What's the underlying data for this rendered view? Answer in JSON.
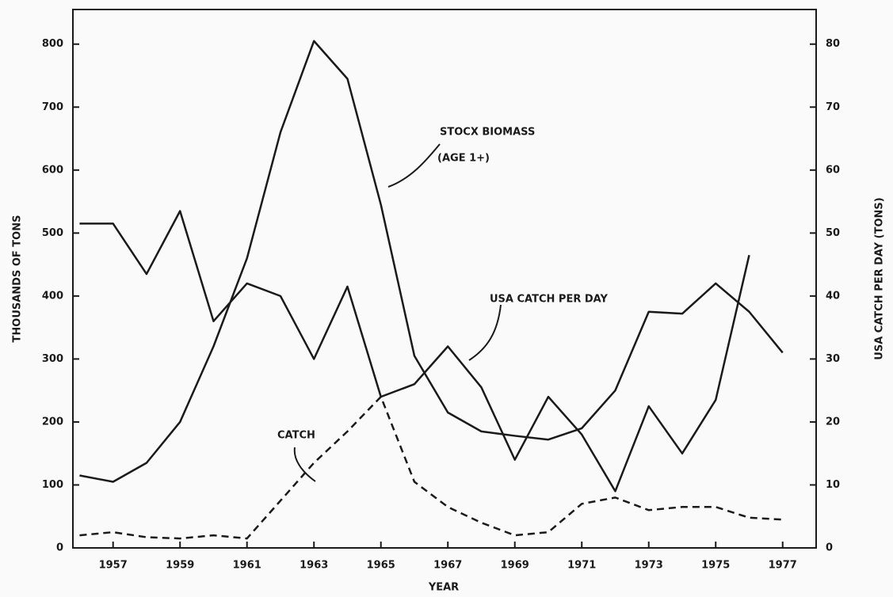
{
  "chart_data": {
    "type": "line",
    "xlabel": "YEAR",
    "ylabel": "THOUSANDS OF TONS",
    "y2label": "USA CATCH PER DAY (TONS)",
    "x": [
      1956,
      1957,
      1958,
      1959,
      1960,
      1961,
      1962,
      1963,
      1964,
      1965,
      1966,
      1967,
      1968,
      1969,
      1970,
      1971,
      1972,
      1973,
      1974,
      1975,
      1976,
      1977
    ],
    "xlim": [
      1955.8,
      1978
    ],
    "xticks": [
      1957,
      1959,
      1961,
      1963,
      1965,
      1967,
      1969,
      1971,
      1973,
      1975,
      1977
    ],
    "ylim": [
      0,
      855
    ],
    "yticks": [
      0,
      100,
      200,
      300,
      400,
      500,
      600,
      700,
      800
    ],
    "y2lim": [
      0,
      85.5
    ],
    "y2ticks": [
      0,
      10,
      20,
      30,
      40,
      50,
      60,
      70,
      80
    ],
    "series": [
      {
        "color": "#1a1a1a",
        "style": "solid",
        "axis": "y",
        "values": [
          115,
          105,
          135,
          200,
          320,
          460,
          660,
          805,
          745,
          545,
          305,
          215,
          185,
          178,
          172,
          190,
          250,
          375,
          372,
          420,
          375,
          310
        ]
      },
      {
        "color": "#1a1a1a",
        "style": "solid",
        "axis": "y2",
        "values": [
          51.5,
          51.5,
          43.5,
          53.5,
          36,
          42,
          40,
          30,
          41.5,
          24,
          26,
          32,
          25.5,
          14,
          24,
          18,
          9,
          22.5,
          15,
          23.5,
          46.5,
          null
        ]
      },
      {
        "color": "#1a1a1a",
        "style": "dashed",
        "axis": "y",
        "values": [
          20,
          25,
          17,
          15,
          20,
          15,
          75,
          135,
          185,
          240,
          105,
          65,
          40,
          20,
          25,
          70,
          80,
          60,
          65,
          65,
          48,
          45
        ]
      }
    ],
    "annotations": [
      "STOCX BIOMASS",
      "(AGE 1+)",
      "USA CATCH PER DAY",
      "CATCH"
    ]
  }
}
